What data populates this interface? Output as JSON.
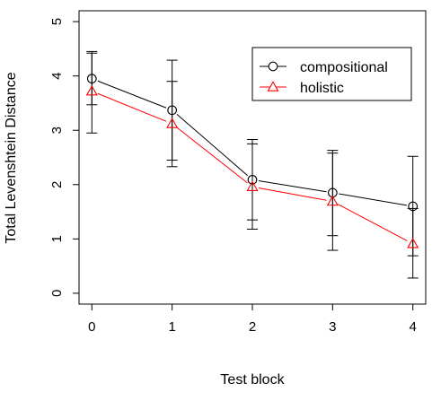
{
  "chart_data": {
    "type": "line",
    "title": "",
    "xlabel": "Test block",
    "ylabel": "Total Levenshtein Distance",
    "x": [
      0,
      1,
      2,
      3,
      4
    ],
    "xticks": [
      "0",
      "1",
      "2",
      "3",
      "4"
    ],
    "yticks": [
      "0",
      "1",
      "2",
      "3",
      "4",
      "5"
    ],
    "xlim": [
      -0.16,
      4.16
    ],
    "ylim": [
      -0.2,
      5.2
    ],
    "grid": false,
    "legend_position": "top-right",
    "series": [
      {
        "name": "compositional",
        "color": "#000000",
        "marker": "circle",
        "values": [
          3.95,
          3.37,
          2.09,
          1.85,
          1.6
        ],
        "error_low": [
          3.47,
          2.45,
          1.35,
          1.06,
          0.69
        ],
        "error_high": [
          4.42,
          4.29,
          2.83,
          2.63,
          2.52
        ]
      },
      {
        "name": "holistic",
        "color": "#ff0000",
        "marker": "triangle",
        "values": [
          3.72,
          3.12,
          1.96,
          1.69,
          0.91
        ],
        "error_low": [
          2.95,
          2.33,
          1.18,
          0.79,
          0.28
        ],
        "error_high": [
          4.45,
          3.9,
          2.75,
          2.58,
          1.56
        ]
      }
    ]
  }
}
